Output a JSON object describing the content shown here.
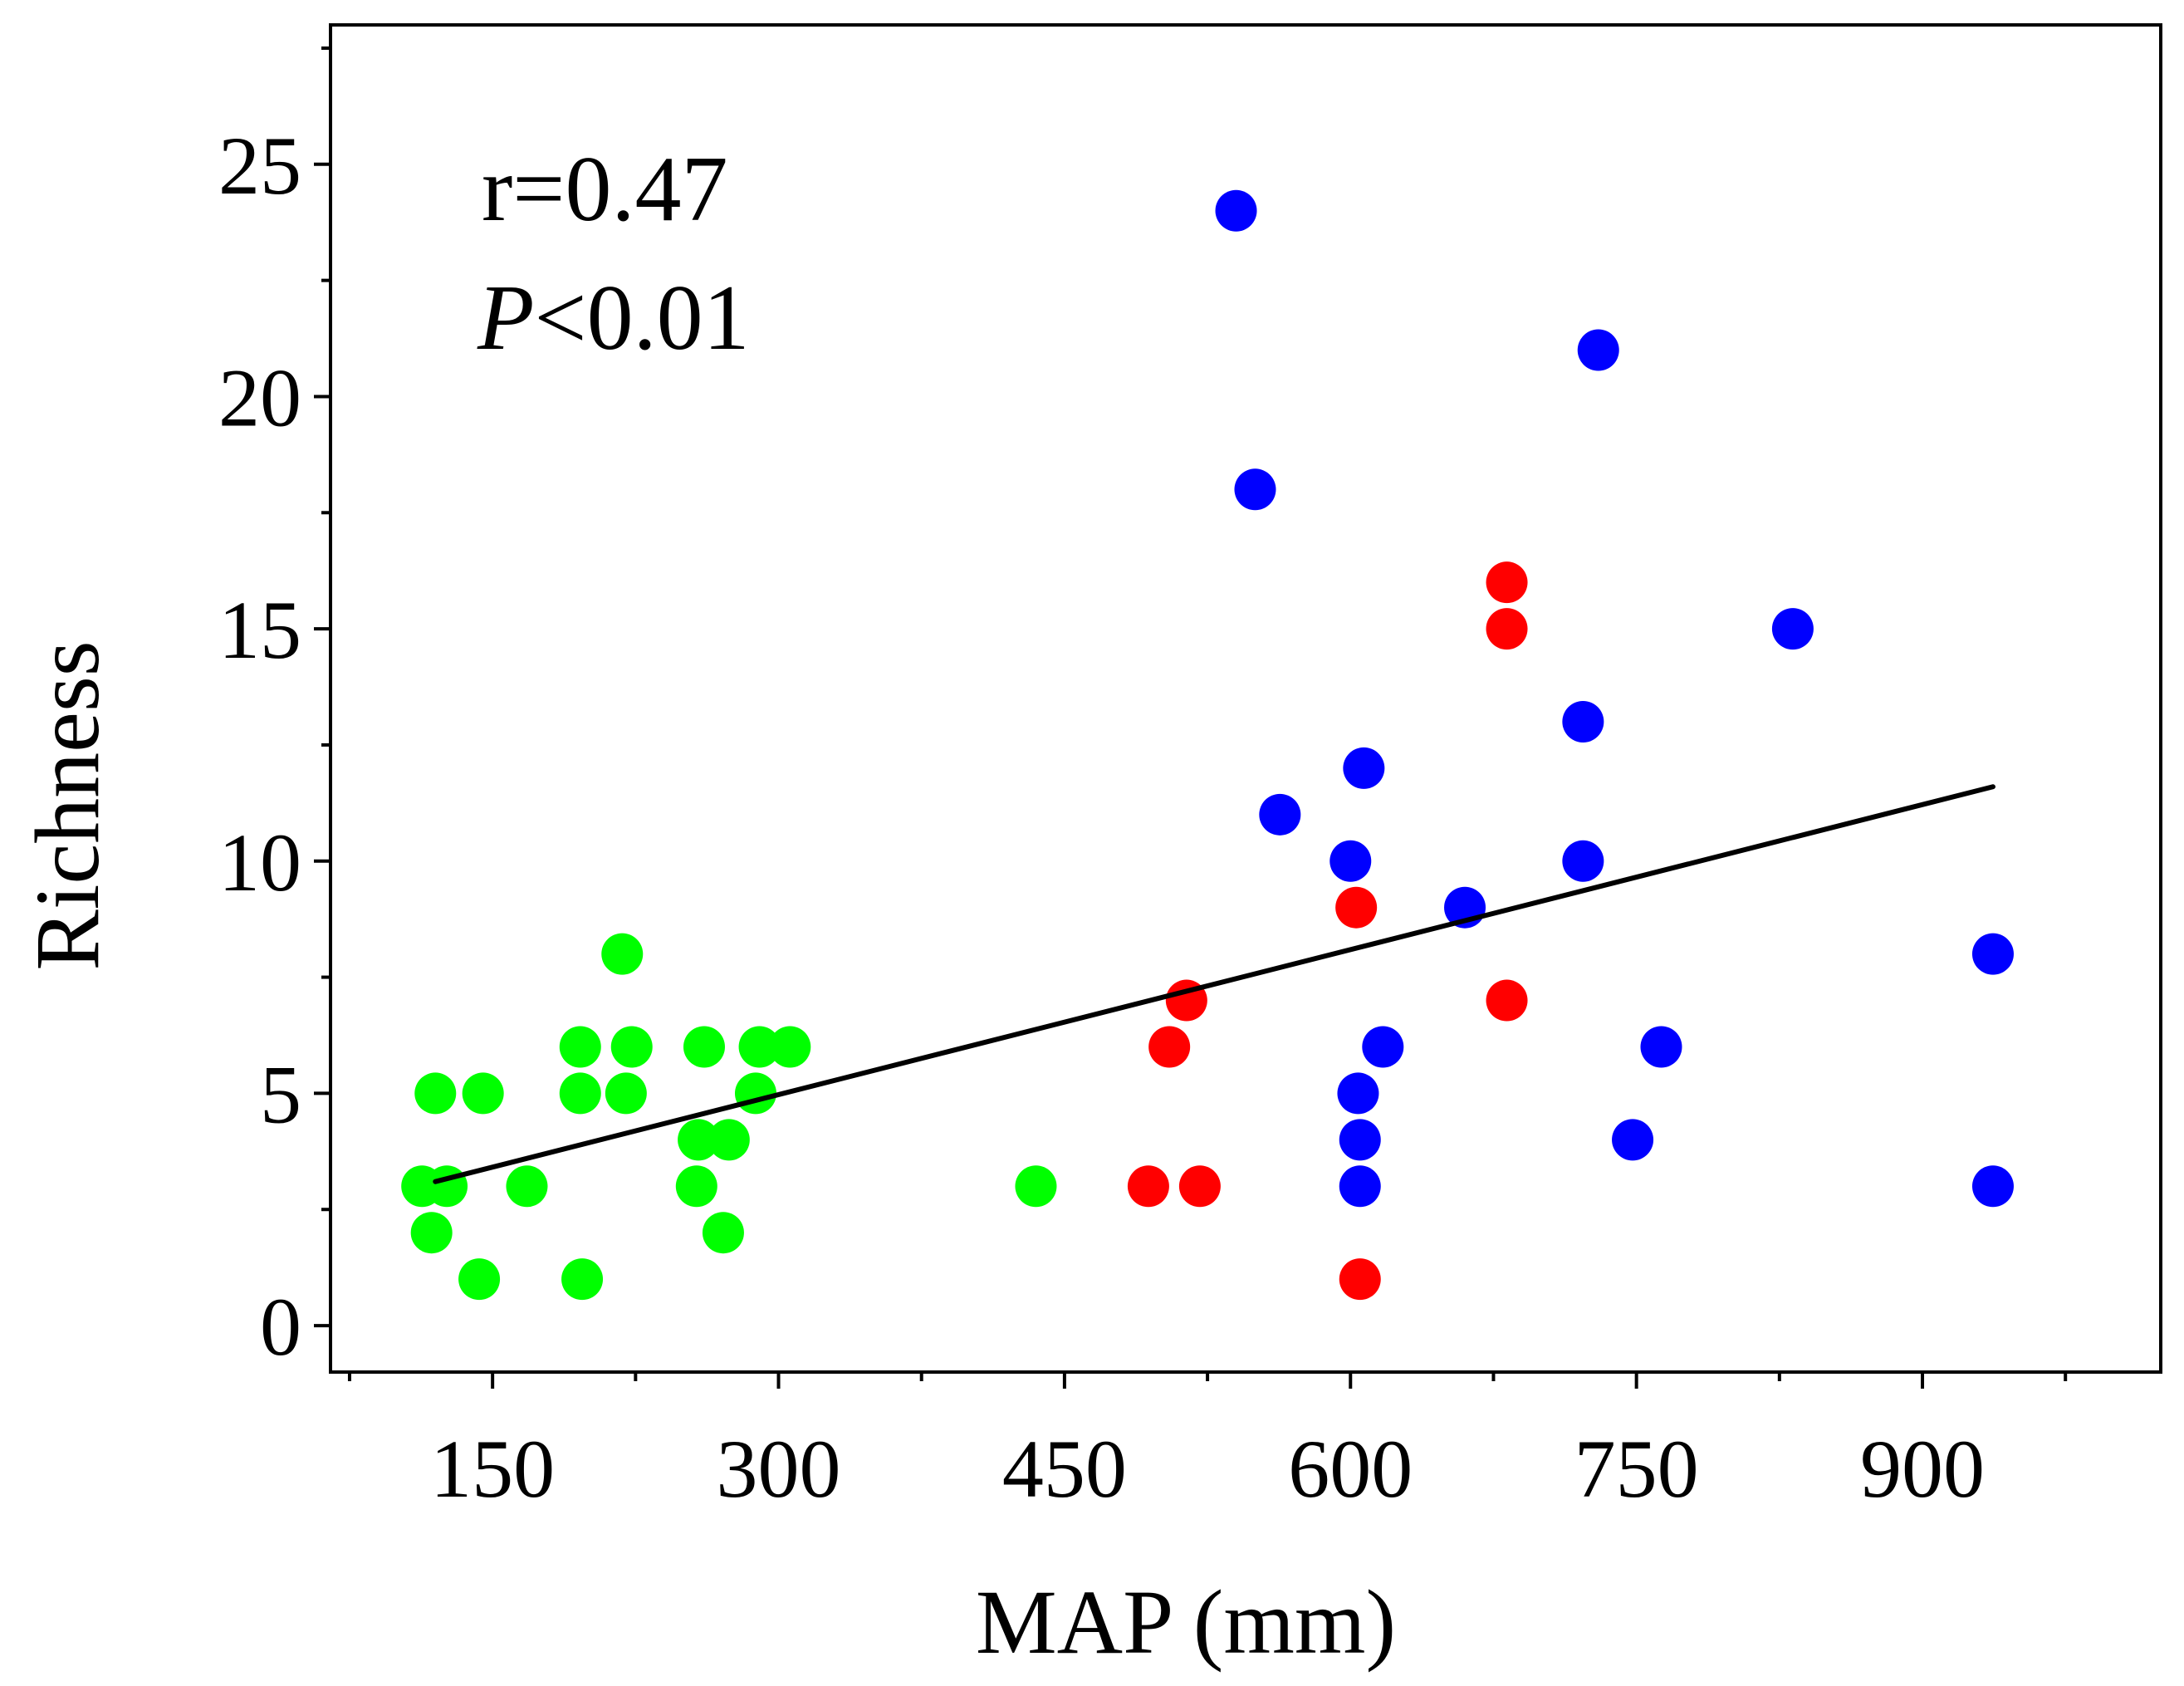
{
  "chart_data": {
    "type": "scatter",
    "title": "",
    "xlabel": "MAP (mm)",
    "ylabel": "Richness",
    "xlim": [
      65,
      1025
    ],
    "ylim": [
      -1,
      28
    ],
    "xticks": [
      150,
      300,
      450,
      600,
      750,
      900
    ],
    "yticks": [
      0,
      5,
      10,
      15,
      20,
      25
    ],
    "grid": false,
    "legend": "none",
    "annotations": {
      "r_text": "r=0.47",
      "p_italic": "P",
      "p_rest": "<0.01"
    },
    "fit_line": {
      "x": [
        120,
        937
      ],
      "y": [
        3.1,
        11.6
      ],
      "color": "#000000"
    },
    "series": [
      {
        "name": "green",
        "color": "#00ff00",
        "points": [
          [
            120,
            5
          ],
          [
            145,
            5
          ],
          [
            113,
            3
          ],
          [
            126,
            3
          ],
          [
            168,
            3
          ],
          [
            118,
            2
          ],
          [
            143,
            1
          ],
          [
            197,
            1
          ],
          [
            196,
            6
          ],
          [
            223,
            6
          ],
          [
            261,
            6
          ],
          [
            290,
            6
          ],
          [
            306,
            6
          ],
          [
            218,
            8
          ],
          [
            196,
            5
          ],
          [
            220,
            5
          ],
          [
            288,
            5
          ],
          [
            258,
            4
          ],
          [
            274,
            4
          ],
          [
            257,
            3
          ],
          [
            271,
            2
          ],
          [
            435,
            3
          ]
        ]
      },
      {
        "name": "red",
        "color": "#ff0000",
        "points": [
          [
            514,
            7
          ],
          [
            505,
            6
          ],
          [
            494,
            3
          ],
          [
            521,
            3
          ],
          [
            603,
            9
          ],
          [
            605,
            1
          ],
          [
            682,
            16
          ],
          [
            682,
            15
          ],
          [
            682,
            7
          ]
        ]
      },
      {
        "name": "blue",
        "color": "#0000ff",
        "points": [
          [
            540,
            24
          ],
          [
            550,
            18
          ],
          [
            730,
            21
          ],
          [
            563,
            11
          ],
          [
            607,
            12
          ],
          [
            600,
            10
          ],
          [
            660,
            9
          ],
          [
            722,
            13
          ],
          [
            722,
            10
          ],
          [
            832,
            15
          ],
          [
            617,
            6
          ],
          [
            604,
            5
          ],
          [
            605,
            4
          ],
          [
            605,
            3
          ],
          [
            763,
            6
          ],
          [
            748,
            4
          ],
          [
            937,
            8
          ],
          [
            937,
            3
          ]
        ]
      }
    ]
  }
}
